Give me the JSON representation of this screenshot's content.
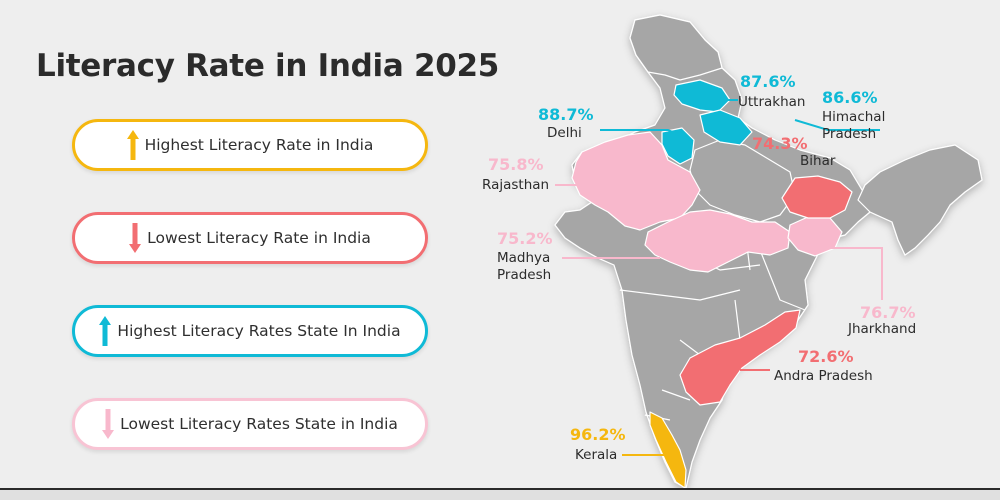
{
  "title": "Literacy Rate in India 2025",
  "legend": [
    {
      "label": "Highest Literacy Rate in India",
      "icon": "arrow-up-icon",
      "color": "#f5b70f"
    },
    {
      "label": "Lowest Literacy Rate in India",
      "icon": "arrow-down-icon",
      "color": "#f26e72"
    },
    {
      "label": "Highest Literacy Rates State In India",
      "icon": "arrow-up-icon",
      "color": "#0fbad6"
    },
    {
      "label": "Lowest Literacy Rates State in India",
      "icon": "arrow-down-icon",
      "color": "#f8c4d4"
    }
  ],
  "colors": {
    "highest": "#f5b70f",
    "lowest": "#f26e72",
    "high_state": "#0fbad6",
    "low_state": "#f8b8cc",
    "land": "#a6a6a6"
  },
  "states": [
    {
      "name": "Uttrakhan",
      "value": "87.6%",
      "category": "high_state"
    },
    {
      "name": "Himachal Pradesh",
      "value": "86.6%",
      "category": "high_state"
    },
    {
      "name": "Delhi",
      "value": "88.7%",
      "category": "high_state"
    },
    {
      "name": "Bihar",
      "value": "74.3%",
      "category": "lowest"
    },
    {
      "name": "Rajasthan",
      "value": "75.8%",
      "category": "low_state"
    },
    {
      "name": "Madhya Pradesh",
      "value": "75.2%",
      "category": "low_state"
    },
    {
      "name": "Jharkhand",
      "value": "76.7%",
      "category": "low_state"
    },
    {
      "name": "Andra Pradesh",
      "value": "72.6%",
      "category": "lowest"
    },
    {
      "name": "Kerala",
      "value": "96.2%",
      "category": "highest"
    }
  ],
  "labels": {
    "uttrakhan": {
      "value": "87.6%",
      "name": "Uttrakhan"
    },
    "himachal": {
      "value": "86.6%",
      "name_line1": "Himachal",
      "name_line2": "Pradesh"
    },
    "delhi": {
      "value": "88.7%",
      "name": "Delhi"
    },
    "bihar": {
      "value": "74.3%",
      "name": "Bihar"
    },
    "rajasthan": {
      "value": "75.8%",
      "name": "Rajasthan"
    },
    "madhya": {
      "value": "75.2%",
      "name_line1": "Madhya",
      "name_line2": "Pradesh"
    },
    "jharkhand": {
      "value": "76.7%",
      "name": "Jharkhand"
    },
    "andhra": {
      "value": "72.6%",
      "name": "Andra Pradesh"
    },
    "kerala": {
      "value": "96.2%",
      "name": "Kerala"
    }
  }
}
